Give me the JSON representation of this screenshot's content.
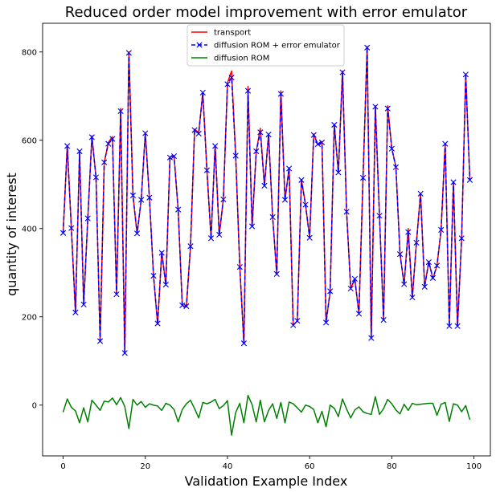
{
  "chart_data": {
    "type": "line",
    "title": "Reduced order model improvement with error emulator",
    "xlabel": "Validation Example Index",
    "ylabel": "quantity of interest",
    "xlim": [
      -5,
      104
    ],
    "ylim": [
      -115,
      865
    ],
    "xticks": [
      0,
      20,
      40,
      60,
      80,
      100
    ],
    "yticks": [
      0,
      200,
      400,
      600,
      800
    ],
    "grid": false,
    "legend_position": "top-center",
    "x": [
      0,
      1,
      2,
      3,
      4,
      5,
      6,
      7,
      8,
      9,
      10,
      11,
      12,
      13,
      14,
      15,
      16,
      17,
      18,
      19,
      20,
      21,
      22,
      23,
      24,
      25,
      26,
      27,
      28,
      29,
      30,
      31,
      32,
      33,
      34,
      35,
      36,
      37,
      38,
      39,
      40,
      41,
      42,
      43,
      44,
      45,
      46,
      47,
      48,
      49,
      50,
      51,
      52,
      53,
      54,
      55,
      56,
      57,
      58,
      59,
      60,
      61,
      62,
      63,
      64,
      65,
      66,
      67,
      68,
      69,
      70,
      71,
      72,
      73,
      74,
      75,
      76,
      77,
      78,
      79,
      80,
      81,
      82,
      83,
      84,
      85,
      86,
      87,
      88,
      89,
      90,
      91,
      92,
      93,
      94,
      95,
      96,
      97,
      98,
      99
    ],
    "series": [
      {
        "name": "transport",
        "color": "#ff0000",
        "style": "solid",
        "values": [
          390,
          588,
          400,
          210,
          574,
          228,
          423,
          610,
          516,
          145,
          549,
          595,
          608,
          252,
          672,
          118,
          800,
          474,
          388,
          465,
          617,
          470,
          293,
          183,
          347,
          273,
          562,
          565,
          441,
          226,
          223,
          359,
          625,
          617,
          708,
          532,
          379,
          588,
          385,
          467,
          730,
          757,
          565,
          313,
          140,
          722,
          405,
          574,
          627,
          497,
          613,
          425,
          296,
          712,
          464,
          538,
          181,
          190,
          511,
          454,
          380,
          614,
          590,
          597,
          188,
          257,
          636,
          527,
          757,
          437,
          265,
          285,
          207,
          515,
          812,
          152,
          678,
          430,
          193,
          678,
          582,
          540,
          342,
          274,
          400,
          243,
          368,
          480,
          268,
          326,
          286,
          316,
          396,
          593,
          179,
          506,
          178,
          378,
          750,
          510
        ]
      },
      {
        "name": "diffusion ROM + error emulator",
        "color": "#0000ff",
        "style": "dashed-x",
        "values": [
          390,
          587,
          401,
          210,
          575,
          228,
          423,
          607,
          516,
          145,
          550,
          592,
          603,
          251,
          666,
          118,
          798,
          475,
          389,
          465,
          616,
          470,
          293,
          185,
          345,
          273,
          561,
          564,
          443,
          226,
          224,
          360,
          623,
          615,
          708,
          532,
          378,
          587,
          386,
          466,
          727,
          742,
          565,
          313,
          140,
          712,
          405,
          575,
          618,
          497,
          613,
          426,
          297,
          705,
          465,
          536,
          181,
          191,
          510,
          454,
          379,
          612,
          591,
          595,
          187,
          258,
          635,
          527,
          754,
          438,
          264,
          286,
          207,
          515,
          810,
          152,
          676,
          429,
          193,
          672,
          581,
          539,
          342,
          274,
          392,
          244,
          368,
          479,
          268,
          324,
          288,
          316,
          397,
          592,
          179,
          505,
          179,
          378,
          749,
          510
        ]
      },
      {
        "name": "diffusion ROM",
        "color": "#008000",
        "style": "solid",
        "values": [
          -16,
          14,
          -5,
          -13,
          -40,
          -6,
          -38,
          11,
          0,
          -12,
          9,
          7,
          16,
          1,
          17,
          -3,
          -53,
          13,
          0,
          8,
          -5,
          3,
          0,
          -2,
          -12,
          4,
          0,
          -10,
          -38,
          -10,
          3,
          11,
          -8,
          -29,
          6,
          3,
          7,
          13,
          -8,
          -1,
          10,
          -68,
          -17,
          4,
          -40,
          22,
          1,
          -38,
          11,
          -38,
          -12,
          3,
          -30,
          6,
          -40,
          7,
          3,
          -6,
          -16,
          0,
          -3,
          -10,
          -40,
          -14,
          -49,
          0,
          -7,
          -26,
          14,
          -9,
          -29,
          -11,
          -4,
          -15,
          -19,
          -21,
          19,
          -21,
          -8,
          13,
          3,
          -11,
          -20,
          2,
          -12,
          4,
          1,
          2,
          3,
          4,
          4,
          -23,
          2,
          6,
          -37,
          3,
          0,
          -15,
          -1,
          -33
        ]
      }
    ]
  }
}
